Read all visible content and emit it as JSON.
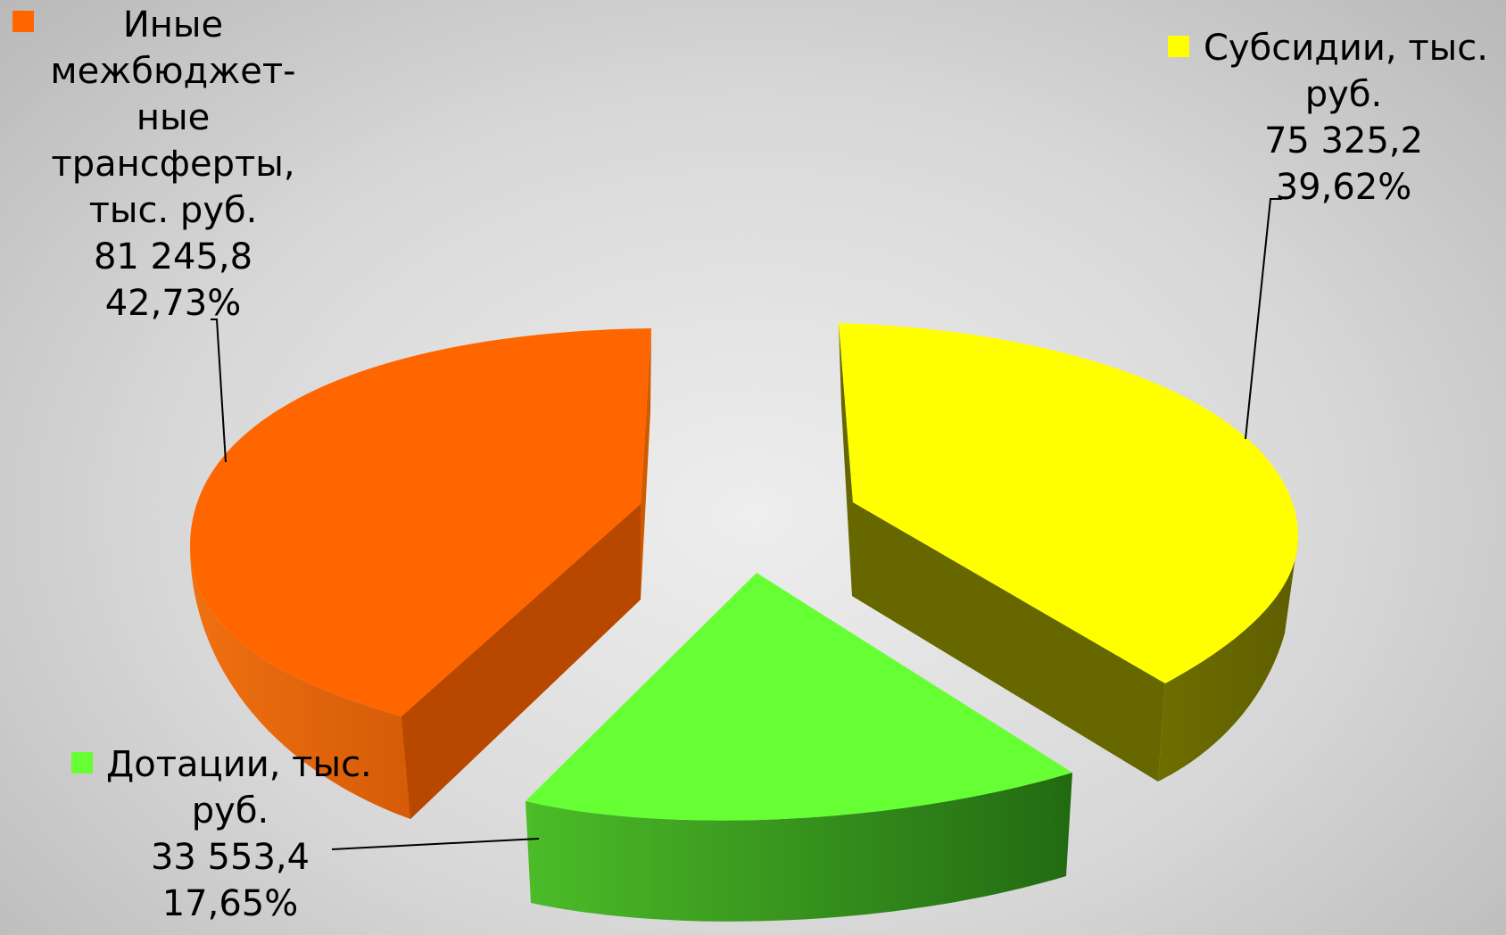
{
  "chart_data": {
    "type": "pie",
    "style": "3d-exploded",
    "slices": [
      {
        "label": "Иные межбюджет-ные трансферты, тыс. руб.",
        "label_lines": [
          "Иные",
          "межбюджет-",
          "ные",
          "трансферты,",
          "тыс. руб."
        ],
        "value": 81245.8,
        "value_text": "81 245,8",
        "percent_text": "42,73%",
        "percent": 42.73,
        "color": "#ff6600"
      },
      {
        "label": "Субсидии, тыс. руб.",
        "label_lines": [
          "Субсидии, тыс.",
          "руб."
        ],
        "value": 75325.2,
        "value_text": "75 325,2",
        "percent_text": "39,62%",
        "percent": 39.62,
        "color": "#ffff00"
      },
      {
        "label": "Дотации, тыс. руб.",
        "label_lines": [
          "Дотации, тыс.",
          "руб."
        ],
        "value": 33553.4,
        "value_text": "33 553,4",
        "percent_text": "17,65%",
        "percent": 17.65,
        "color": "#66ff33"
      }
    ],
    "legend": "inline-labels"
  }
}
